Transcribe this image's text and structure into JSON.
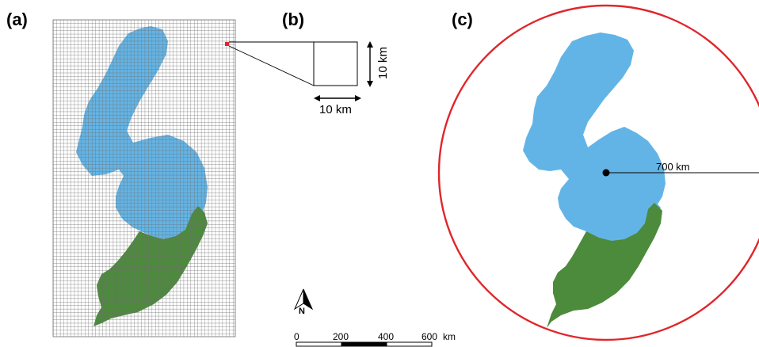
{
  "panels": {
    "a": {
      "label": "(a)"
    },
    "b": {
      "label": "(b)",
      "width_text": "10 km",
      "height_text": "10 km"
    },
    "c": {
      "label": "(c)",
      "radius_text": "700 km"
    }
  },
  "north_arrow": {
    "label": "N"
  },
  "scale_bar": {
    "ticks": [
      "0",
      "200",
      "400",
      "600"
    ],
    "unit": "km"
  },
  "colors": {
    "region_north": "#63b4e6",
    "region_south": "#4c8a3c",
    "grid_line": "#6f6f6f",
    "circle": "#e0262b",
    "highlight_cell": "#e0262b"
  }
}
